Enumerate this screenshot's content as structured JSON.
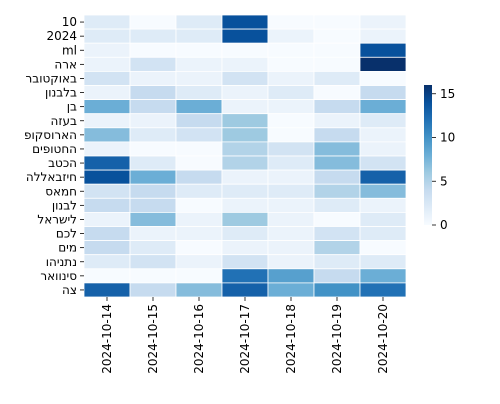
{
  "chart_data": {
    "type": "heatmap",
    "title": "",
    "xlabel": "",
    "ylabel": "",
    "x_categories": [
      "2024-10-14",
      "2024-10-15",
      "2024-10-16",
      "2024-10-17",
      "2024-10-18",
      "2024-10-19",
      "2024-10-20"
    ],
    "y_categories": [
      "10",
      "2024",
      "ml",
      "ארה",
      "באוקטובר",
      "בלבנון",
      "בן",
      "בעזה",
      "הארוסקופ",
      "החטופים",
      "הכטב",
      "חיזבאללה",
      "חמאס",
      "לבנון",
      "לישראל",
      "לכם",
      "מים",
      "נתניהו",
      "סינוואר",
      "צה"
    ],
    "values": [
      [
        2,
        0,
        2,
        14,
        0,
        0,
        1
      ],
      [
        2,
        2,
        2,
        14,
        1,
        0,
        1
      ],
      [
        1,
        0,
        0,
        0,
        0,
        0,
        14
      ],
      [
        1,
        3,
        1,
        1,
        0,
        0,
        16
      ],
      [
        3,
        1,
        1,
        3,
        1,
        2,
        0
      ],
      [
        1,
        4,
        2,
        1,
        2,
        0,
        4
      ],
      [
        8,
        4,
        8,
        1,
        1,
        4,
        8
      ],
      [
        1,
        1,
        4,
        6,
        0,
        1,
        2
      ],
      [
        7,
        2,
        3,
        6,
        0,
        4,
        1
      ],
      [
        1,
        0,
        0,
        5,
        3,
        7,
        1
      ],
      [
        13,
        2,
        0,
        5,
        2,
        7,
        3
      ],
      [
        14,
        8,
        4,
        1,
        1,
        4,
        13
      ],
      [
        3,
        4,
        2,
        2,
        2,
        5,
        7
      ],
      [
        4,
        4,
        0,
        1,
        1,
        2,
        1
      ],
      [
        1,
        7,
        1,
        6,
        1,
        0,
        2
      ],
      [
        4,
        1,
        1,
        2,
        1,
        3,
        2
      ],
      [
        4,
        2,
        0,
        1,
        1,
        5,
        0
      ],
      [
        2,
        3,
        1,
        3,
        1,
        2,
        2
      ],
      [
        0,
        0,
        0,
        12,
        9,
        4,
        8
      ],
      [
        13,
        4,
        7,
        13,
        8,
        10,
        12
      ]
    ],
    "colorbar": {
      "min": 0,
      "max": 16,
      "ticks": [
        0,
        5,
        10,
        15
      ]
    },
    "colormap": "Blues",
    "grid": "white cell separators",
    "legend": "colorbar-right"
  },
  "colors": {
    "low": "#f7fbff",
    "high": "#08306b",
    "separator": "#ffffff"
  }
}
